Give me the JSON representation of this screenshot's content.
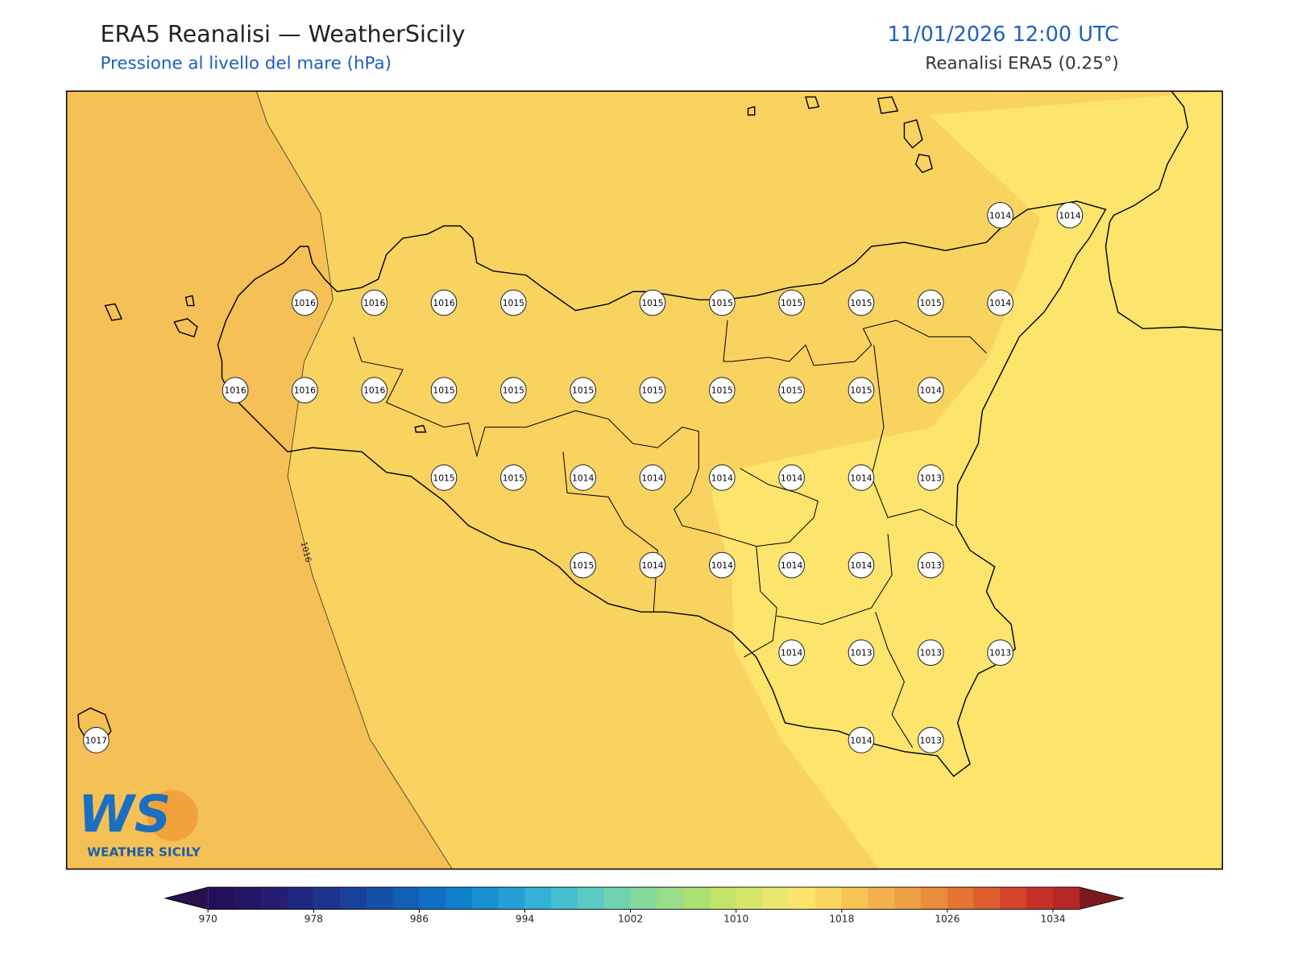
{
  "header": {
    "title": "ERA5 Reanalisi — WeatherSicily",
    "subtitle": "Pressione al livello del mare (hPa)",
    "datetime": "11/01/2026 12:00 UTC",
    "source": "Reanalisi ERA5 (0.25°)"
  },
  "map": {
    "contour_label": "1016",
    "stations": [
      [
        null,
        null,
        null,
        null,
        null,
        null,
        null,
        null,
        null,
        null,
        null,
        null,
        null,
        1014,
        1014
      ],
      [
        null,
        null,
        null,
        1016,
        1016,
        1016,
        1015,
        null,
        1015,
        1015,
        1015,
        1015,
        1015,
        1014,
        null
      ],
      [
        null,
        null,
        1016,
        1016,
        1016,
        1015,
        1015,
        1015,
        1015,
        1015,
        1015,
        1015,
        1014,
        null,
        null
      ],
      [
        null,
        null,
        null,
        null,
        null,
        1015,
        1015,
        1014,
        1014,
        1014,
        1014,
        1014,
        1013,
        null,
        null
      ],
      [
        null,
        null,
        null,
        null,
        null,
        null,
        null,
        1015,
        1014,
        1014,
        1014,
        1014,
        1013,
        null,
        null
      ],
      [
        null,
        null,
        null,
        null,
        null,
        null,
        null,
        null,
        null,
        null,
        1014,
        1013,
        1013,
        1013,
        null
      ],
      [
        1017,
        null,
        null,
        null,
        null,
        null,
        null,
        null,
        null,
        null,
        null,
        1014,
        1013,
        null,
        null
      ]
    ]
  },
  "colorbar": {
    "range": [
      970,
      1036
    ],
    "ticks": [
      970,
      978,
      986,
      994,
      1002,
      1010,
      1018,
      1026,
      1034
    ],
    "under_color": "#2a0f4e",
    "over_color": "#7a1a1e",
    "colors": [
      "#23105a",
      "#251565",
      "#241d72",
      "#21287f",
      "#1d348c",
      "#184299",
      "#1550a8",
      "#125fb5",
      "#0f6fc2",
      "#1080cc",
      "#1890d3",
      "#25a0d5",
      "#34b2d6",
      "#46c0cf",
      "#5acbc2",
      "#6fd3b0",
      "#85da9c",
      "#98de88",
      "#abe073",
      "#c1e466",
      "#d6e76b",
      "#ebe870",
      "#fde36c",
      "#fad560",
      "#f6c355",
      "#f2b14c",
      "#eea044",
      "#ea8c3c",
      "#e57435",
      "#df5c2f",
      "#d6442b",
      "#c83129",
      "#b82728"
    ]
  },
  "logo": {
    "mark": "WS",
    "text": "WEATHER SICILY"
  }
}
